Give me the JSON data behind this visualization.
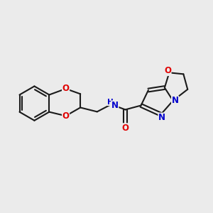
{
  "background_color": "#ebebeb",
  "bond_color": "#1a1a1a",
  "atom_colors": {
    "O": "#e00000",
    "N": "#0000cc",
    "C": "#1a1a1a"
  },
  "figsize": [
    3.0,
    3.0
  ],
  "dpi": 100
}
